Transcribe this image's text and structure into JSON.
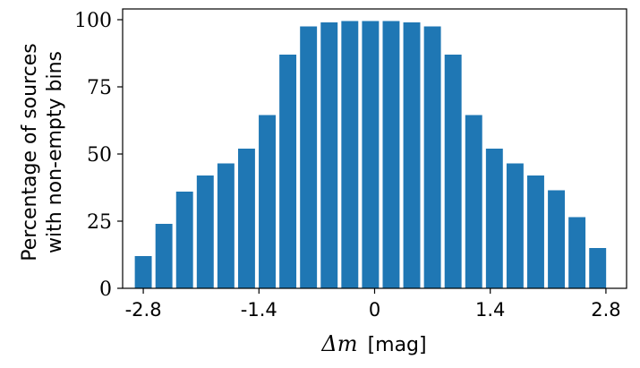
{
  "chart_data": {
    "type": "bar",
    "x": [
      -2.8,
      -2.55,
      -2.3,
      -2.05,
      -1.8,
      -1.55,
      -1.3,
      -1.05,
      -0.8,
      -0.55,
      -0.3,
      -0.05,
      0.2,
      0.45,
      0.7,
      0.95,
      1.2,
      1.45,
      1.7,
      1.95,
      2.2,
      2.45,
      2.7,
      2.95
    ],
    "values": [
      12,
      24,
      36,
      42,
      46.5,
      52,
      64.5,
      87,
      97.5,
      99,
      99.5,
      99.5,
      99.5,
      99,
      97.5,
      87,
      64.5,
      52,
      46.5,
      42,
      36.5,
      26.5,
      15,
      0
    ],
    "bar_color": "#1f77b4",
    "title": "",
    "xlabel_math": "Δm",
    "xlabel_unit": "[mag]",
    "ylabel_line1": "Percentage of sources",
    "ylabel_line2": "with non-empty bins",
    "xlim": [
      -3.05,
      3.05
    ],
    "ylim": [
      0,
      104
    ],
    "xticks": [
      -2.8,
      -1.4,
      0,
      1.4,
      2.8
    ],
    "xtick_labels": [
      "-2.8",
      "-1.4",
      "0",
      "1.4",
      "2.8"
    ],
    "yticks": [
      0,
      25,
      50,
      75,
      100
    ],
    "ytick_labels": [
      "0",
      "25",
      "50",
      "75",
      "100"
    ],
    "grid": false,
    "legend": "none"
  }
}
